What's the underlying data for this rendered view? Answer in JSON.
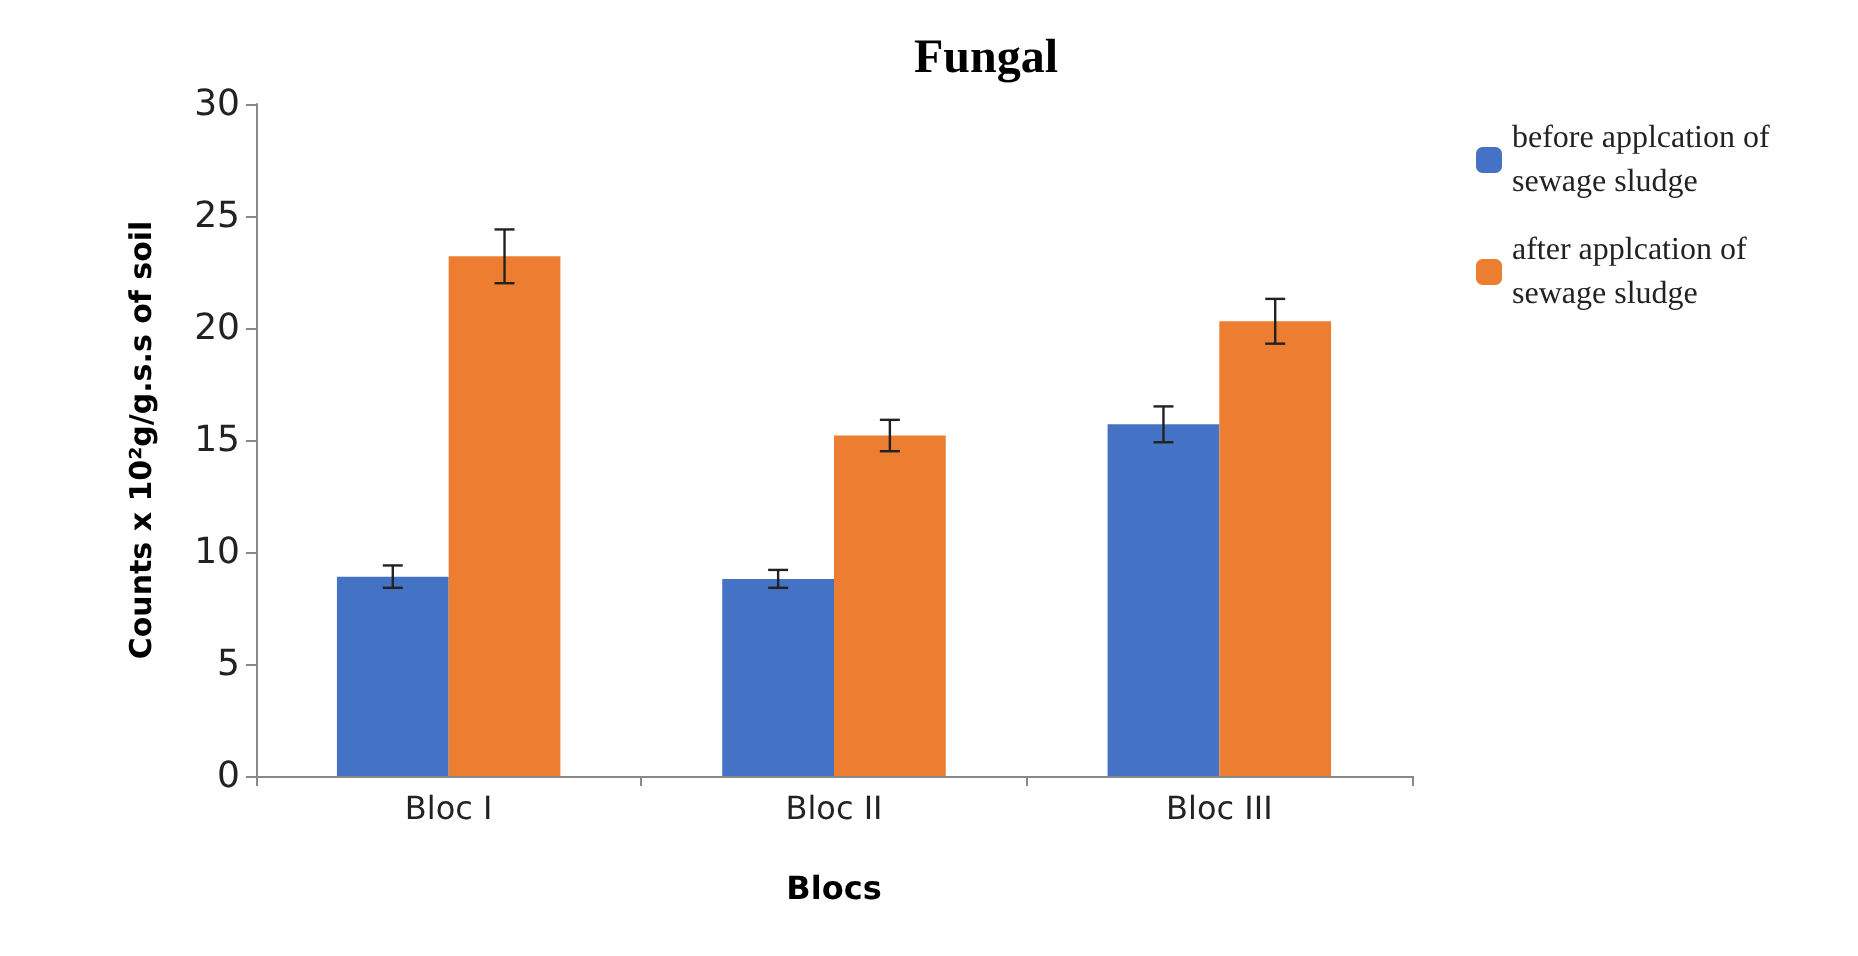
{
  "chart_data": {
    "type": "bar",
    "title": "Fungal",
    "xlabel": "Blocs",
    "ylabel": "Counts x 10²g/g.s.s of soil",
    "categories": [
      "Bloc I",
      "Bloc II",
      "Bloc III"
    ],
    "series": [
      {
        "name": "before applcation of sewage sludge",
        "color": "#4472c4",
        "values": [
          8.9,
          8.8,
          15.7
        ],
        "errors": [
          0.5,
          0.4,
          0.8
        ]
      },
      {
        "name": "after applcation of sewage sludge",
        "color": "#ed7d31",
        "values": [
          23.2,
          15.2,
          20.3
        ],
        "errors": [
          1.2,
          0.7,
          1.0
        ]
      }
    ],
    "ylim": [
      0,
      30
    ],
    "yticks": [
      0,
      5,
      10,
      15,
      20,
      25,
      30
    ],
    "grid": false,
    "legend": "top right"
  }
}
